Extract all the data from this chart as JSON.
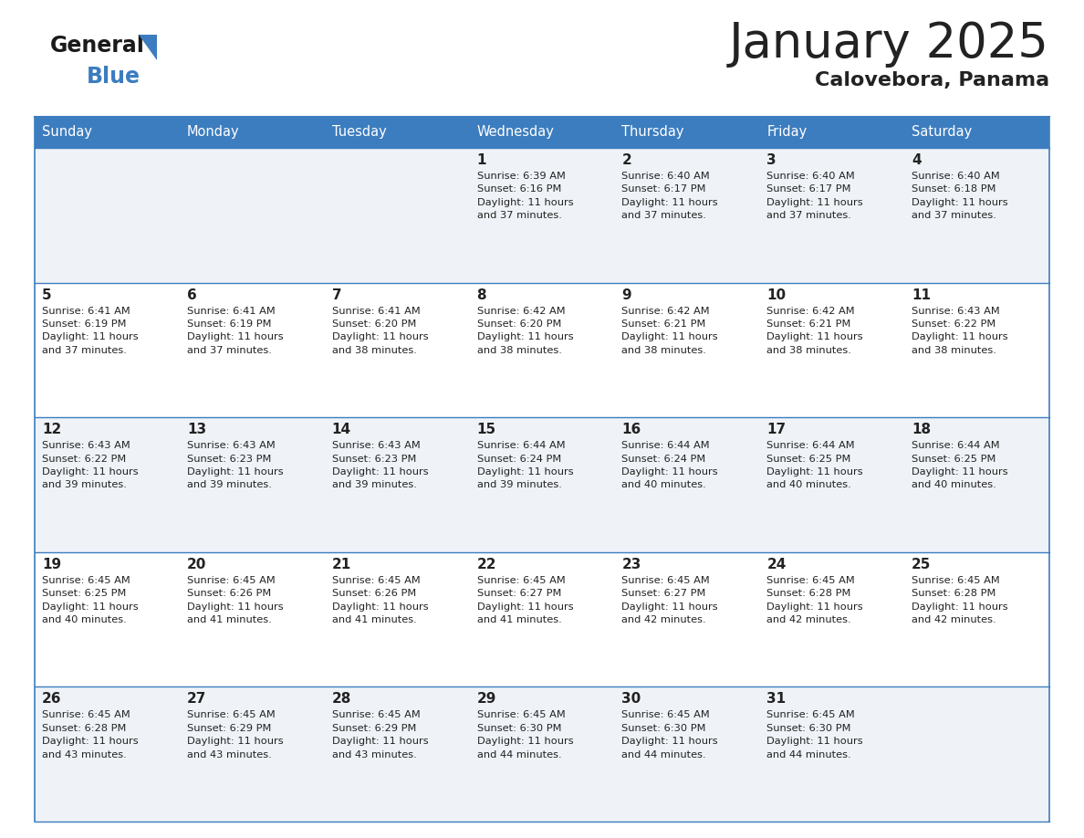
{
  "title": "January 2025",
  "subtitle": "Calovebora, Panama",
  "header_bg": "#3c7dbf",
  "header_text": "#ffffff",
  "row_bg_light": "#eff3f8",
  "row_bg_white": "#ffffff",
  "separator_color": "#3c7dbf",
  "text_color": "#222222",
  "days_of_week": [
    "Sunday",
    "Monday",
    "Tuesday",
    "Wednesday",
    "Thursday",
    "Friday",
    "Saturday"
  ],
  "logo_general_color": "#1a1a1a",
  "logo_blue_color": "#3c7dbf",
  "logo_triangle_color": "#3c7dbf",
  "weeks": [
    [
      {
        "day": null,
        "info": null
      },
      {
        "day": null,
        "info": null
      },
      {
        "day": null,
        "info": null
      },
      {
        "day": 1,
        "info": "Sunrise: 6:39 AM\nSunset: 6:16 PM\nDaylight: 11 hours\nand 37 minutes."
      },
      {
        "day": 2,
        "info": "Sunrise: 6:40 AM\nSunset: 6:17 PM\nDaylight: 11 hours\nand 37 minutes."
      },
      {
        "day": 3,
        "info": "Sunrise: 6:40 AM\nSunset: 6:17 PM\nDaylight: 11 hours\nand 37 minutes."
      },
      {
        "day": 4,
        "info": "Sunrise: 6:40 AM\nSunset: 6:18 PM\nDaylight: 11 hours\nand 37 minutes."
      }
    ],
    [
      {
        "day": 5,
        "info": "Sunrise: 6:41 AM\nSunset: 6:19 PM\nDaylight: 11 hours\nand 37 minutes."
      },
      {
        "day": 6,
        "info": "Sunrise: 6:41 AM\nSunset: 6:19 PM\nDaylight: 11 hours\nand 37 minutes."
      },
      {
        "day": 7,
        "info": "Sunrise: 6:41 AM\nSunset: 6:20 PM\nDaylight: 11 hours\nand 38 minutes."
      },
      {
        "day": 8,
        "info": "Sunrise: 6:42 AM\nSunset: 6:20 PM\nDaylight: 11 hours\nand 38 minutes."
      },
      {
        "day": 9,
        "info": "Sunrise: 6:42 AM\nSunset: 6:21 PM\nDaylight: 11 hours\nand 38 minutes."
      },
      {
        "day": 10,
        "info": "Sunrise: 6:42 AM\nSunset: 6:21 PM\nDaylight: 11 hours\nand 38 minutes."
      },
      {
        "day": 11,
        "info": "Sunrise: 6:43 AM\nSunset: 6:22 PM\nDaylight: 11 hours\nand 38 minutes."
      }
    ],
    [
      {
        "day": 12,
        "info": "Sunrise: 6:43 AM\nSunset: 6:22 PM\nDaylight: 11 hours\nand 39 minutes."
      },
      {
        "day": 13,
        "info": "Sunrise: 6:43 AM\nSunset: 6:23 PM\nDaylight: 11 hours\nand 39 minutes."
      },
      {
        "day": 14,
        "info": "Sunrise: 6:43 AM\nSunset: 6:23 PM\nDaylight: 11 hours\nand 39 minutes."
      },
      {
        "day": 15,
        "info": "Sunrise: 6:44 AM\nSunset: 6:24 PM\nDaylight: 11 hours\nand 39 minutes."
      },
      {
        "day": 16,
        "info": "Sunrise: 6:44 AM\nSunset: 6:24 PM\nDaylight: 11 hours\nand 40 minutes."
      },
      {
        "day": 17,
        "info": "Sunrise: 6:44 AM\nSunset: 6:25 PM\nDaylight: 11 hours\nand 40 minutes."
      },
      {
        "day": 18,
        "info": "Sunrise: 6:44 AM\nSunset: 6:25 PM\nDaylight: 11 hours\nand 40 minutes."
      }
    ],
    [
      {
        "day": 19,
        "info": "Sunrise: 6:45 AM\nSunset: 6:25 PM\nDaylight: 11 hours\nand 40 minutes."
      },
      {
        "day": 20,
        "info": "Sunrise: 6:45 AM\nSunset: 6:26 PM\nDaylight: 11 hours\nand 41 minutes."
      },
      {
        "day": 21,
        "info": "Sunrise: 6:45 AM\nSunset: 6:26 PM\nDaylight: 11 hours\nand 41 minutes."
      },
      {
        "day": 22,
        "info": "Sunrise: 6:45 AM\nSunset: 6:27 PM\nDaylight: 11 hours\nand 41 minutes."
      },
      {
        "day": 23,
        "info": "Sunrise: 6:45 AM\nSunset: 6:27 PM\nDaylight: 11 hours\nand 42 minutes."
      },
      {
        "day": 24,
        "info": "Sunrise: 6:45 AM\nSunset: 6:28 PM\nDaylight: 11 hours\nand 42 minutes."
      },
      {
        "day": 25,
        "info": "Sunrise: 6:45 AM\nSunset: 6:28 PM\nDaylight: 11 hours\nand 42 minutes."
      }
    ],
    [
      {
        "day": 26,
        "info": "Sunrise: 6:45 AM\nSunset: 6:28 PM\nDaylight: 11 hours\nand 43 minutes."
      },
      {
        "day": 27,
        "info": "Sunrise: 6:45 AM\nSunset: 6:29 PM\nDaylight: 11 hours\nand 43 minutes."
      },
      {
        "day": 28,
        "info": "Sunrise: 6:45 AM\nSunset: 6:29 PM\nDaylight: 11 hours\nand 43 minutes."
      },
      {
        "day": 29,
        "info": "Sunrise: 6:45 AM\nSunset: 6:30 PM\nDaylight: 11 hours\nand 44 minutes."
      },
      {
        "day": 30,
        "info": "Sunrise: 6:45 AM\nSunset: 6:30 PM\nDaylight: 11 hours\nand 44 minutes."
      },
      {
        "day": 31,
        "info": "Sunrise: 6:45 AM\nSunset: 6:30 PM\nDaylight: 11 hours\nand 44 minutes."
      },
      {
        "day": null,
        "info": null
      }
    ]
  ]
}
